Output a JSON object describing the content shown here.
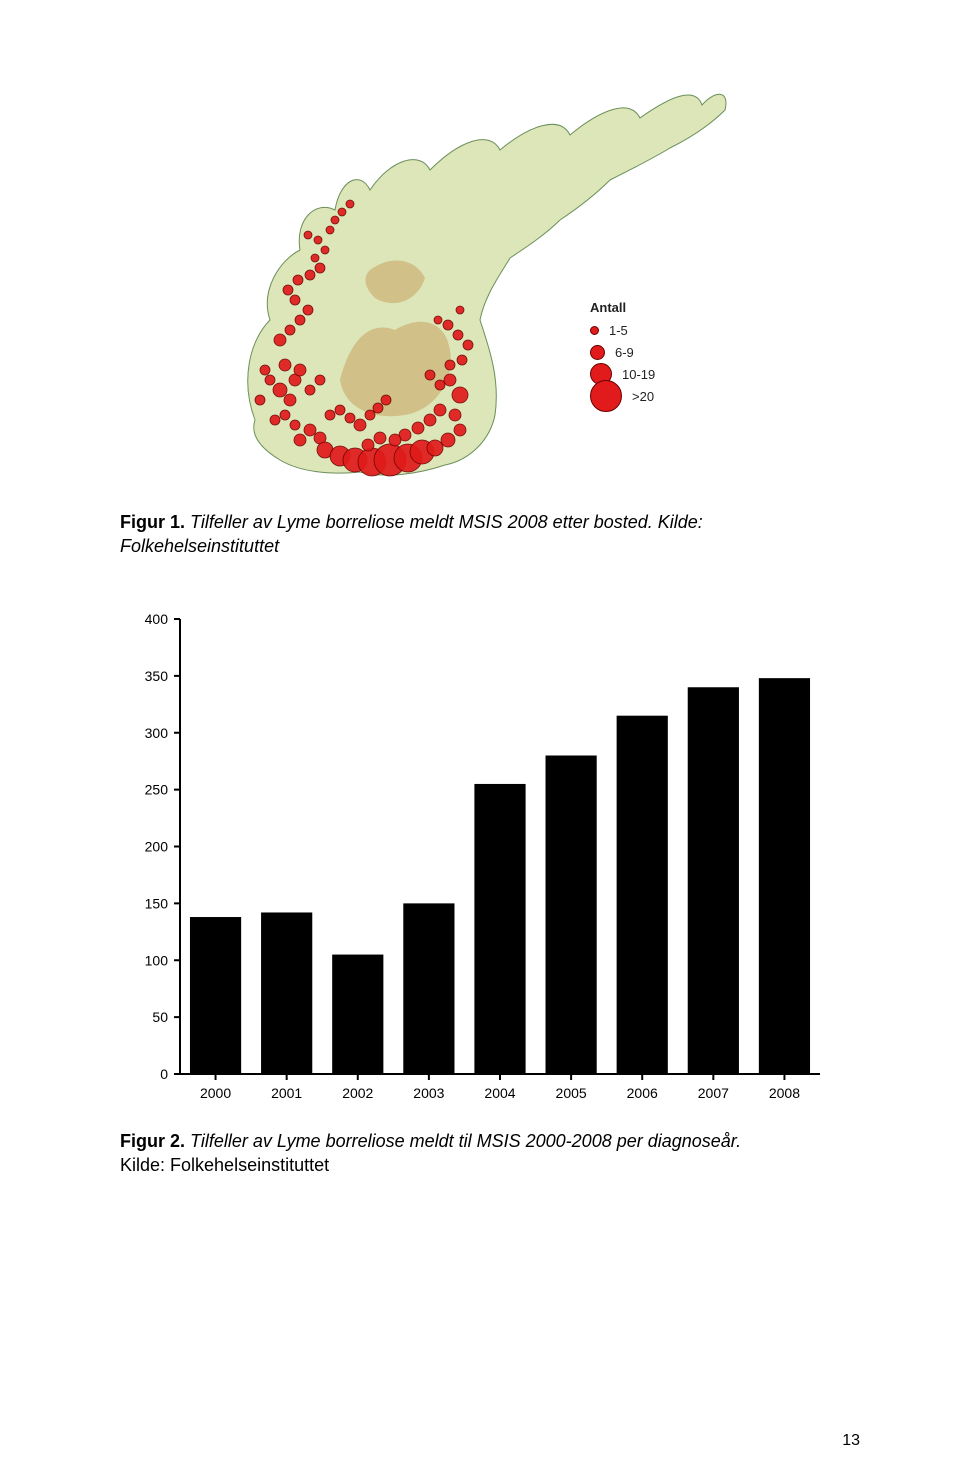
{
  "page_number": "13",
  "map": {
    "land_fill": "#dce6b8",
    "highland_fill": "#c8a060",
    "coast_stroke": "#6b8f5a",
    "water_fill": "#ffffff",
    "point_fill": "#e11b1b",
    "point_stroke": "#6a0000",
    "legend_title": "Antall",
    "legend": [
      {
        "label": "1-5",
        "diam": 7
      },
      {
        "label": "6-9",
        "diam": 13
      },
      {
        "label": "10-19",
        "diam": 20
      },
      {
        "label": ">20",
        "diam": 30
      }
    ],
    "points": [
      [
        100,
        420,
        6
      ],
      [
        110,
        410,
        6
      ],
      [
        120,
        418,
        6
      ],
      [
        95,
        405,
        5
      ],
      [
        85,
        395,
        5
      ],
      [
        90,
        380,
        6
      ],
      [
        80,
        370,
        7
      ],
      [
        95,
        360,
        6
      ],
      [
        110,
        370,
        5
      ],
      [
        120,
        360,
        5
      ],
      [
        100,
        350,
        6
      ],
      [
        85,
        345,
        6
      ],
      [
        70,
        360,
        5
      ],
      [
        75,
        400,
        5
      ],
      [
        60,
        380,
        5
      ],
      [
        65,
        350,
        5
      ],
      [
        80,
        320,
        6
      ],
      [
        90,
        310,
        5
      ],
      [
        100,
        300,
        5
      ],
      [
        108,
        290,
        5
      ],
      [
        95,
        280,
        5
      ],
      [
        88,
        270,
        5
      ],
      [
        98,
        260,
        5
      ],
      [
        110,
        255,
        5
      ],
      [
        120,
        248,
        5
      ],
      [
        115,
        238,
        4
      ],
      [
        125,
        230,
        4
      ],
      [
        118,
        220,
        4
      ],
      [
        108,
        215,
        4
      ],
      [
        130,
        210,
        4
      ],
      [
        135,
        200,
        4
      ],
      [
        142,
        192,
        4
      ],
      [
        150,
        184,
        4
      ],
      [
        125,
        430,
        8
      ],
      [
        140,
        436,
        10
      ],
      [
        155,
        440,
        12
      ],
      [
        172,
        442,
        14
      ],
      [
        190,
        440,
        16
      ],
      [
        208,
        438,
        14
      ],
      [
        222,
        432,
        12
      ],
      [
        235,
        428,
        8
      ],
      [
        248,
        420,
        7
      ],
      [
        260,
        410,
        6
      ],
      [
        255,
        395,
        6
      ],
      [
        240,
        390,
        6
      ],
      [
        230,
        400,
        6
      ],
      [
        218,
        408,
        6
      ],
      [
        205,
        415,
        6
      ],
      [
        195,
        420,
        6
      ],
      [
        180,
        418,
        6
      ],
      [
        168,
        425,
        6
      ],
      [
        260,
        375,
        8
      ],
      [
        250,
        360,
        6
      ],
      [
        240,
        365,
        5
      ],
      [
        230,
        355,
        5
      ],
      [
        250,
        345,
        5
      ],
      [
        262,
        340,
        5
      ],
      [
        268,
        325,
        5
      ],
      [
        258,
        315,
        5
      ],
      [
        248,
        305,
        5
      ],
      [
        238,
        300,
        4
      ],
      [
        260,
        290,
        4
      ],
      [
        160,
        405,
        6
      ],
      [
        170,
        395,
        5
      ],
      [
        178,
        388,
        5
      ],
      [
        186,
        380,
        5
      ],
      [
        150,
        398,
        5
      ],
      [
        140,
        390,
        5
      ],
      [
        130,
        395,
        5
      ]
    ]
  },
  "caption1": {
    "strong": "Figur 1.",
    "rest": " Tilfeller av Lyme borreliose meldt MSIS 2008 etter bosted. Kilde: Folkehelseinstituttet"
  },
  "chart": {
    "type": "bar",
    "categories": [
      "2000",
      "2001",
      "2002",
      "2003",
      "2004",
      "2005",
      "2006",
      "2007",
      "2008"
    ],
    "values": [
      138,
      142,
      105,
      150,
      255,
      280,
      315,
      340,
      348
    ],
    "ylim": [
      0,
      400
    ],
    "ytick_step": 50,
    "bar_color": "#000000",
    "axis_color": "#000000",
    "text_color": "#000000",
    "background_color": "#ffffff",
    "bar_width_ratio": 0.72,
    "label_fontsize": 14,
    "tick_fontsize": 14
  },
  "caption2": {
    "strong": "Figur 2.",
    "rest_italic": " Tilfeller av Lyme borreliose meldt til MSIS 2000-2008 per diagnoseår.",
    "source": "Kilde: Folkehelseinstituttet"
  }
}
